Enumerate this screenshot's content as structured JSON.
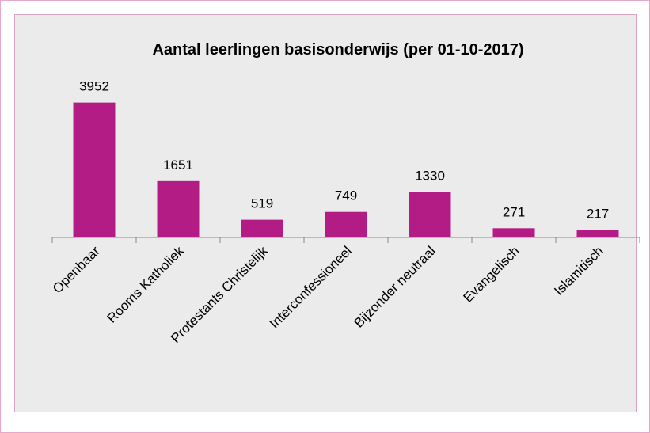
{
  "chart_data": {
    "type": "bar",
    "title": "Aantal leerlingen basisonderwijs (per 01-10-2017)",
    "categories": [
      "Openbaar",
      "Rooms Katholiek",
      "Protestants Christelijk",
      "Interconfessioneel",
      "Bijzonder neutraal",
      "Evangelisch",
      "Islamitisch"
    ],
    "values": [
      3952,
      1651,
      519,
      749,
      1330,
      271,
      217
    ],
    "color": "#b41c85",
    "ylim": [
      0,
      4500
    ]
  }
}
